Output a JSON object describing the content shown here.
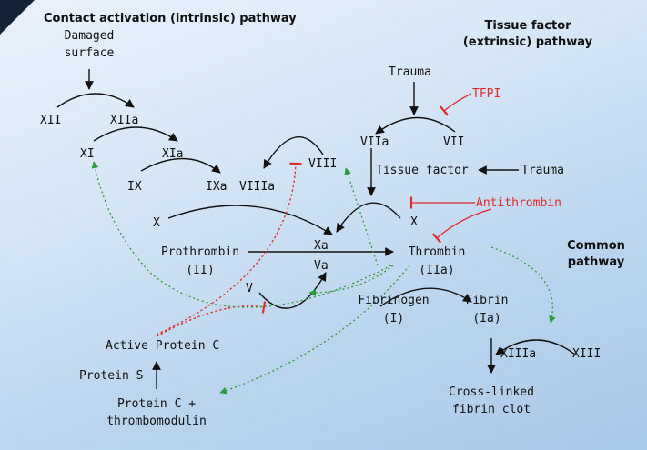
{
  "titles": {
    "intrinsic": "Contact activation (intrinsic) pathway",
    "extrinsic_1": "Tissue factor",
    "extrinsic_2": "(extrinsic) pathway",
    "common_1": "Common",
    "common_2": "pathway"
  },
  "nodes": {
    "damaged_1": "Damaged",
    "damaged_2": "surface",
    "xii": "XII",
    "xiia": "XIIa",
    "xi": "XI",
    "xia": "XIa",
    "ix": "IX",
    "ixa": "IXa",
    "viiia": "VIIIa",
    "viii": "VIII",
    "x_left": "X",
    "xa": "Xa",
    "va": "Va",
    "v": "V",
    "prothrombin": "Prothrombin",
    "prothrombin_ii": "(II)",
    "thrombin": "Thrombin",
    "thrombin_iia": "(IIa)",
    "trauma_top": "Trauma",
    "tfpi": "TFPI",
    "viia": "VIIa",
    "vii": "VII",
    "tissue_factor": "Tissue factor",
    "trauma_right": "Trauma",
    "antithrombin": "Antithrombin",
    "x_right": "X",
    "fibrinogen": "Fibrinogen",
    "fibrinogen_i": "(I)",
    "fibrin": "Fibrin",
    "fibrin_ia": "(Ia)",
    "xiiia": "XIIIa",
    "xiii": "XIII",
    "crosslinked_1": "Cross-linked",
    "crosslinked_2": "fibrin clot",
    "active_protein_c": "Active Protein C",
    "protein_s": "Protein S",
    "protein_c_1": "Protein C +",
    "protein_c_2": "thrombomodulin"
  },
  "colors": {
    "activation_edge": "#111111",
    "inhibition_edge": "#e02a2a",
    "feedback_edge": "#2e9a3a",
    "corner": "#142238"
  }
}
